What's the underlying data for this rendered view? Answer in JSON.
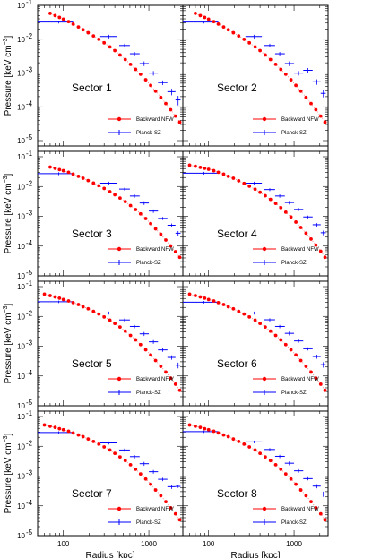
{
  "figure": {
    "ylabel_prefix": "Pressure [keV cm",
    "ylabel_sup": "−3",
    "ylabel_suffix": "]",
    "xlabel": "Radius [kpc]"
  },
  "axes": {
    "x": {
      "type": "log",
      "range": [
        50,
        2500
      ],
      "ticks": [
        100,
        1000
      ],
      "tick_labels": [
        "100",
        "1000"
      ]
    },
    "y": {
      "type": "log",
      "range": [
        1e-05,
        0.1
      ],
      "ticks": [
        1e-05,
        0.0001,
        0.001,
        0.01,
        0.1
      ],
      "tick_labels": [
        "10",
        "10",
        "10",
        "10",
        "10"
      ],
      "tick_exponents": [
        "-5",
        "-4",
        "-3",
        "-2",
        "-1"
      ]
    }
  },
  "legend": {
    "position": "lower-right",
    "entries": [
      {
        "name": "Backward NFW",
        "color": "#ff0000",
        "marker": "dot"
      },
      {
        "name": "Planck-SZ",
        "color": "#0000ff",
        "marker": "plus"
      }
    ]
  },
  "chart_data": [
    {
      "type": "scatter",
      "title": "Sector 1",
      "panel": 1,
      "series": [
        {
          "name": "Backward NFW",
          "x": [
            70,
            80,
            90,
            100,
            115,
            130,
            150,
            170,
            195,
            225,
            260,
            300,
            350,
            400,
            460,
            530,
            610,
            700,
            800,
            920,
            1050,
            1200,
            1380,
            1580,
            1800,
            2050,
            2300
          ],
          "y": [
            0.058,
            0.05,
            0.044,
            0.039,
            0.033,
            0.028,
            0.023,
            0.019,
            0.0155,
            0.0125,
            0.0099,
            0.0078,
            0.0059,
            0.0046,
            0.0034,
            0.0025,
            0.0018,
            0.00128,
            0.00092,
            0.00063,
            0.00043,
            0.00029,
            0.00019,
            0.000125,
            8.2e-05,
            5.3e-05,
            3.5e-05
          ]
        },
        {
          "name": "Planck-SZ",
          "x": [
            88,
            340,
            520,
            680,
            880,
            1130,
            1450,
            1850,
            2200
          ],
          "y": [
            0.032,
            0.012,
            0.0065,
            0.0037,
            0.0019,
            0.00099,
            0.00052,
            0.00028,
            0.00016
          ],
          "xerr_lo": [
            38,
            70,
            70,
            80,
            100,
            130,
            170,
            200,
            150
          ],
          "xerr_hi": [
            42,
            80,
            80,
            100,
            120,
            150,
            200,
            200,
            150
          ],
          "yerr": [
            0.003,
            0.0015,
            0.0008,
            0.0005,
            0.0003,
            0.00015,
            8e-05,
            6e-05,
            5e-05
          ]
        }
      ]
    },
    {
      "type": "scatter",
      "title": "Sector 2",
      "panel": 2,
      "series": [
        {
          "name": "Backward NFW",
          "x": [
            70,
            80,
            90,
            100,
            115,
            130,
            150,
            170,
            195,
            225,
            260,
            300,
            350,
            400,
            460,
            530,
            610,
            700,
            800,
            920,
            1050,
            1200,
            1380,
            1580,
            1800,
            2050,
            2300
          ],
          "y": [
            0.058,
            0.05,
            0.044,
            0.039,
            0.033,
            0.028,
            0.023,
            0.019,
            0.0155,
            0.0125,
            0.0099,
            0.0078,
            0.0059,
            0.0046,
            0.0034,
            0.0025,
            0.0018,
            0.00128,
            0.00092,
            0.00063,
            0.00043,
            0.00029,
            0.00019,
            0.000125,
            8.2e-05,
            5.3e-05,
            3.5e-05
          ]
        },
        {
          "name": "Planck-SZ",
          "x": [
            88,
            340,
            520,
            680,
            880,
            1130,
            1450,
            1850,
            2200
          ],
          "y": [
            0.032,
            0.012,
            0.0065,
            0.0037,
            0.0019,
            0.00099,
            0.0012,
            0.00055,
            0.00025
          ],
          "xerr_lo": [
            38,
            70,
            70,
            80,
            100,
            130,
            170,
            200,
            150
          ],
          "xerr_hi": [
            42,
            80,
            80,
            100,
            120,
            150,
            200,
            200,
            150
          ],
          "yerr": [
            0.003,
            0.0015,
            0.0008,
            0.0005,
            0.0003,
            0.00015,
            0.0002,
            0.0001,
            6e-05
          ]
        }
      ]
    },
    {
      "type": "scatter",
      "title": "Sector 3",
      "panel": 3,
      "series": [
        {
          "name": "Backward NFW",
          "x": [
            70,
            80,
            90,
            100,
            115,
            130,
            150,
            170,
            195,
            225,
            260,
            300,
            350,
            400,
            460,
            530,
            610,
            700,
            800,
            920,
            1050,
            1200,
            1380,
            1580,
            1800,
            2050,
            2300
          ],
          "y": [
            0.045,
            0.041,
            0.037,
            0.034,
            0.03,
            0.026,
            0.022,
            0.019,
            0.0158,
            0.013,
            0.0106,
            0.0086,
            0.0067,
            0.0053,
            0.0041,
            0.0031,
            0.0023,
            0.00168,
            0.00121,
            0.00084,
            0.00057,
            0.00038,
            0.00025,
            0.00016,
            0.000102,
            6.5e-05,
            4.2e-05
          ]
        },
        {
          "name": "Planck-SZ",
          "x": [
            88,
            340,
            520,
            680,
            880,
            1130,
            1450,
            1850,
            2200
          ],
          "y": [
            0.027,
            0.013,
            0.0082,
            0.0048,
            0.0028,
            0.0015,
            0.00085,
            0.0005,
            0.00027
          ],
          "xerr_lo": [
            38,
            70,
            70,
            80,
            100,
            130,
            170,
            200,
            150
          ],
          "xerr_hi": [
            42,
            80,
            80,
            100,
            120,
            150,
            200,
            200,
            150
          ],
          "yerr": [
            0.003,
            0.0015,
            0.0009,
            0.0006,
            0.0004,
            0.0002,
            0.0001,
            7e-05,
            5e-05
          ]
        }
      ]
    },
    {
      "type": "scatter",
      "title": "Sector 4",
      "panel": 4,
      "series": [
        {
          "name": "Backward NFW",
          "x": [
            60,
            70,
            80,
            90,
            100,
            115,
            130,
            150,
            170,
            195,
            225,
            260,
            300,
            350,
            400,
            460,
            530,
            610,
            700,
            800,
            920,
            1050,
            1200,
            1380,
            1580,
            1800,
            2050,
            2300
          ],
          "y": [
            0.052,
            0.048,
            0.044,
            0.041,
            0.038,
            0.034,
            0.03,
            0.026,
            0.022,
            0.019,
            0.0155,
            0.0127,
            0.0103,
            0.0081,
            0.0064,
            0.0049,
            0.0037,
            0.0027,
            0.00195,
            0.00138,
            0.00095,
            0.00064,
            0.00042,
            0.00027,
            0.000172,
            0.000108,
            6.7e-05,
            4.2e-05
          ]
        },
        {
          "name": "Planck-SZ",
          "x": [
            88,
            340,
            520,
            680,
            880,
            1130,
            1450,
            1850,
            2200
          ],
          "y": [
            0.028,
            0.013,
            0.0079,
            0.0048,
            0.0029,
            0.0017,
            0.00095,
            0.00052,
            0.00028
          ],
          "xerr_lo": [
            38,
            70,
            70,
            80,
            100,
            130,
            170,
            200,
            150
          ],
          "xerr_hi": [
            42,
            80,
            80,
            100,
            120,
            150,
            200,
            200,
            150
          ],
          "yerr": [
            0.003,
            0.0015,
            0.0009,
            0.0006,
            0.0004,
            0.0002,
            0.0001,
            7e-05,
            5e-05
          ]
        }
      ]
    },
    {
      "type": "scatter",
      "title": "Sector 5",
      "panel": 5,
      "series": [
        {
          "name": "Backward NFW",
          "x": [
            60,
            70,
            80,
            90,
            100,
            115,
            130,
            150,
            170,
            195,
            225,
            260,
            300,
            350,
            400,
            460,
            530,
            610,
            700,
            800,
            920,
            1050,
            1200,
            1380,
            1580,
            1800,
            2050,
            2300
          ],
          "y": [
            0.056,
            0.05,
            0.045,
            0.041,
            0.037,
            0.033,
            0.029,
            0.025,
            0.021,
            0.018,
            0.0148,
            0.012,
            0.0096,
            0.0075,
            0.0058,
            0.0044,
            0.0032,
            0.0023,
            0.00163,
            0.00113,
            0.00076,
            0.00051,
            0.00033,
            0.00021,
            0.000135,
            8.5e-05,
            5.3e-05,
            3.3e-05
          ]
        },
        {
          "name": "Planck-SZ",
          "x": [
            88,
            340,
            520,
            680,
            880,
            1130,
            1450,
            1850,
            2200
          ],
          "y": [
            0.031,
            0.013,
            0.0076,
            0.0046,
            0.0026,
            0.0014,
            0.00075,
            0.00042,
            0.00023
          ],
          "xerr_lo": [
            38,
            70,
            70,
            80,
            100,
            130,
            170,
            200,
            150
          ],
          "xerr_hi": [
            42,
            80,
            80,
            100,
            120,
            150,
            200,
            200,
            150
          ],
          "yerr": [
            0.003,
            0.0015,
            0.0009,
            0.0006,
            0.0004,
            0.0002,
            0.0001,
            7e-05,
            5e-05
          ]
        }
      ]
    },
    {
      "type": "scatter",
      "title": "Sector 6",
      "panel": 6,
      "series": [
        {
          "name": "Backward NFW",
          "x": [
            60,
            70,
            80,
            90,
            100,
            115,
            130,
            150,
            170,
            195,
            225,
            260,
            300,
            350,
            400,
            460,
            530,
            610,
            700,
            800,
            920,
            1050,
            1200,
            1380,
            1580,
            1800,
            2050,
            2300
          ],
          "y": [
            0.056,
            0.05,
            0.045,
            0.041,
            0.037,
            0.033,
            0.029,
            0.025,
            0.021,
            0.018,
            0.0148,
            0.012,
            0.0096,
            0.0075,
            0.0058,
            0.0044,
            0.0032,
            0.0023,
            0.00163,
            0.00113,
            0.00076,
            0.00051,
            0.00033,
            0.00021,
            0.000135,
            8.5e-05,
            5.3e-05,
            3.3e-05
          ]
        },
        {
          "name": "Planck-SZ",
          "x": [
            88,
            340,
            520,
            680,
            880,
            1130,
            1450,
            1850,
            2200
          ],
          "y": [
            0.03,
            0.013,
            0.0077,
            0.0046,
            0.0027,
            0.0015,
            0.00082,
            0.00045,
            0.00024
          ],
          "xerr_lo": [
            38,
            70,
            70,
            80,
            100,
            130,
            170,
            200,
            150
          ],
          "xerr_hi": [
            42,
            80,
            80,
            100,
            120,
            150,
            200,
            200,
            150
          ],
          "yerr": [
            0.003,
            0.0015,
            0.0009,
            0.0006,
            0.0004,
            0.0002,
            0.0001,
            7e-05,
            5e-05
          ]
        }
      ]
    },
    {
      "type": "scatter",
      "title": "Sector 7",
      "panel": 7,
      "series": [
        {
          "name": "Backward NFW",
          "x": [
            60,
            70,
            80,
            90,
            100,
            115,
            130,
            150,
            170,
            195,
            225,
            260,
            300,
            350,
            400,
            460,
            530,
            610,
            700,
            800,
            920,
            1050,
            1200,
            1380,
            1580,
            1800,
            2050,
            2300
          ],
          "y": [
            0.052,
            0.047,
            0.043,
            0.039,
            0.036,
            0.032,
            0.028,
            0.024,
            0.021,
            0.0175,
            0.0145,
            0.0118,
            0.0095,
            0.0075,
            0.0058,
            0.0044,
            0.0033,
            0.0024,
            0.0017,
            0.00118,
            0.0008,
            0.00053,
            0.00034,
            0.00022,
            0.000138,
            8.6e-05,
            5.4e-05,
            3.4e-05
          ]
        },
        {
          "name": "Planck-SZ",
          "x": [
            88,
            340,
            520,
            680,
            880,
            1130,
            1450,
            1850,
            2200
          ],
          "y": [
            0.029,
            0.013,
            0.0075,
            0.0045,
            0.0026,
            0.0014,
            0.00078,
            0.00044,
            0.00045
          ],
          "xerr_lo": [
            38,
            70,
            70,
            80,
            100,
            130,
            170,
            200,
            150
          ],
          "xerr_hi": [
            42,
            80,
            80,
            100,
            120,
            150,
            200,
            200,
            150
          ],
          "yerr": [
            0.003,
            0.0015,
            0.0009,
            0.0006,
            0.0004,
            0.0002,
            0.0001,
            7e-05,
            5e-05
          ]
        }
      ]
    },
    {
      "type": "scatter",
      "title": "Sector 8",
      "panel": 8,
      "series": [
        {
          "name": "Backward NFW",
          "x": [
            60,
            70,
            80,
            90,
            100,
            115,
            130,
            150,
            170,
            195,
            225,
            260,
            300,
            350,
            400,
            460,
            530,
            610,
            700,
            800,
            920,
            1050,
            1200,
            1380,
            1580,
            1800,
            2050,
            2300
          ],
          "y": [
            0.052,
            0.047,
            0.043,
            0.039,
            0.036,
            0.032,
            0.028,
            0.024,
            0.021,
            0.0175,
            0.0145,
            0.0118,
            0.0095,
            0.0075,
            0.0058,
            0.0044,
            0.0033,
            0.0024,
            0.0017,
            0.00118,
            0.0008,
            0.00053,
            0.00034,
            0.00022,
            0.000138,
            8.6e-05,
            5.4e-05,
            3.4e-05
          ]
        },
        {
          "name": "Planck-SZ",
          "x": [
            88,
            340,
            520,
            680,
            880,
            1130,
            1450,
            1850,
            2200
          ],
          "y": [
            0.031,
            0.014,
            0.0078,
            0.0046,
            0.0027,
            0.0015,
            0.00082,
            0.00046,
            0.00025
          ],
          "xerr_lo": [
            38,
            70,
            70,
            80,
            100,
            130,
            170,
            200,
            150
          ],
          "xerr_hi": [
            42,
            80,
            80,
            100,
            120,
            150,
            200,
            200,
            150
          ],
          "yerr": [
            0.003,
            0.0015,
            0.0009,
            0.0006,
            0.0004,
            0.0002,
            0.0001,
            7e-05,
            5e-05
          ]
        }
      ]
    }
  ]
}
